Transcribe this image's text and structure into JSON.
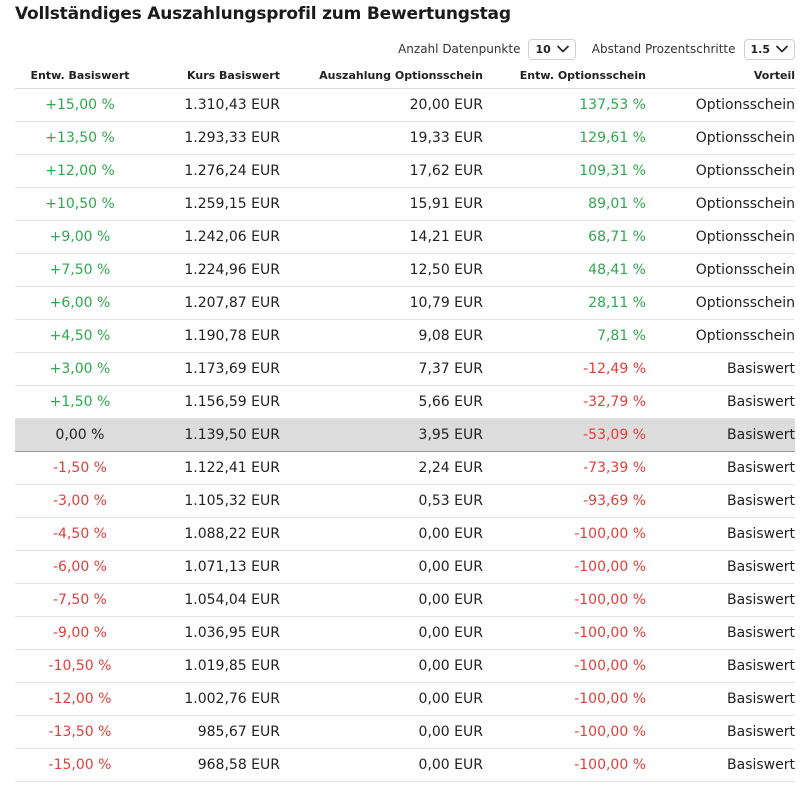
{
  "title": "Vollständiges Auszahlungsprofil zum Bewertungstag",
  "controls": {
    "datapoints_label": "Anzahl Datenpunkte",
    "datapoints_value": "10",
    "step_label": "Abstand Prozentschritte",
    "step_value": "1.5"
  },
  "colors": {
    "positive": "#2fa84f",
    "negative": "#e0403a",
    "highlight_row": "#dcdcdc"
  },
  "table": {
    "headers": [
      "Entw. Basiswert",
      "Kurs Basiswert",
      "Auszahlung Optionsschein",
      "Entw. Optionsschein",
      "Vorteil"
    ],
    "rows": [
      {
        "entw": "+15,00 %",
        "kurs": "1.310,43 EUR",
        "auszahlung": "20,00 EUR",
        "entw_os": "137,53 %",
        "vorteil": "Optionsschein",
        "s1": "pos",
        "s2": "pos"
      },
      {
        "entw": "+13,50 %",
        "kurs": "1.293,33 EUR",
        "auszahlung": "19,33 EUR",
        "entw_os": "129,61 %",
        "vorteil": "Optionsschein",
        "s1": "pos",
        "s2": "pos"
      },
      {
        "entw": "+12,00 %",
        "kurs": "1.276,24 EUR",
        "auszahlung": "17,62 EUR",
        "entw_os": "109,31 %",
        "vorteil": "Optionsschein",
        "s1": "pos",
        "s2": "pos"
      },
      {
        "entw": "+10,50 %",
        "kurs": "1.259,15 EUR",
        "auszahlung": "15,91 EUR",
        "entw_os": "89,01 %",
        "vorteil": "Optionsschein",
        "s1": "pos",
        "s2": "pos"
      },
      {
        "entw": "+9,00 %",
        "kurs": "1.242,06 EUR",
        "auszahlung": "14,21 EUR",
        "entw_os": "68,71 %",
        "vorteil": "Optionsschein",
        "s1": "pos",
        "s2": "pos"
      },
      {
        "entw": "+7,50 %",
        "kurs": "1.224,96 EUR",
        "auszahlung": "12,50 EUR",
        "entw_os": "48,41 %",
        "vorteil": "Optionsschein",
        "s1": "pos",
        "s2": "pos"
      },
      {
        "entw": "+6,00 %",
        "kurs": "1.207,87 EUR",
        "auszahlung": "10,79 EUR",
        "entw_os": "28,11 %",
        "vorteil": "Optionsschein",
        "s1": "pos",
        "s2": "pos"
      },
      {
        "entw": "+4,50 %",
        "kurs": "1.190,78 EUR",
        "auszahlung": "9,08 EUR",
        "entw_os": "7,81 %",
        "vorteil": "Optionsschein",
        "s1": "pos",
        "s2": "pos"
      },
      {
        "entw": "+3,00 %",
        "kurs": "1.173,69 EUR",
        "auszahlung": "7,37 EUR",
        "entw_os": "-12,49 %",
        "vorteil": "Basiswert",
        "s1": "pos",
        "s2": "neg"
      },
      {
        "entw": "+1,50 %",
        "kurs": "1.156,59 EUR",
        "auszahlung": "5,66 EUR",
        "entw_os": "-32,79 %",
        "vorteil": "Basiswert",
        "s1": "pos",
        "s2": "neg"
      },
      {
        "entw": "0,00 %",
        "kurs": "1.139,50 EUR",
        "auszahlung": "3,95 EUR",
        "entw_os": "-53,09 %",
        "vorteil": "Basiswert",
        "s1": "neu",
        "s2": "neg",
        "current": true
      },
      {
        "entw": "-1,50 %",
        "kurs": "1.122,41 EUR",
        "auszahlung": "2,24 EUR",
        "entw_os": "-73,39 %",
        "vorteil": "Basiswert",
        "s1": "neg",
        "s2": "neg"
      },
      {
        "entw": "-3,00 %",
        "kurs": "1.105,32 EUR",
        "auszahlung": "0,53 EUR",
        "entw_os": "-93,69 %",
        "vorteil": "Basiswert",
        "s1": "neg",
        "s2": "neg"
      },
      {
        "entw": "-4,50 %",
        "kurs": "1.088,22 EUR",
        "auszahlung": "0,00 EUR",
        "entw_os": "-100,00 %",
        "vorteil": "Basiswert",
        "s1": "neg",
        "s2": "neg"
      },
      {
        "entw": "-6,00 %",
        "kurs": "1.071,13 EUR",
        "auszahlung": "0,00 EUR",
        "entw_os": "-100,00 %",
        "vorteil": "Basiswert",
        "s1": "neg",
        "s2": "neg"
      },
      {
        "entw": "-7,50 %",
        "kurs": "1.054,04 EUR",
        "auszahlung": "0,00 EUR",
        "entw_os": "-100,00 %",
        "vorteil": "Basiswert",
        "s1": "neg",
        "s2": "neg"
      },
      {
        "entw": "-9,00 %",
        "kurs": "1.036,95 EUR",
        "auszahlung": "0,00 EUR",
        "entw_os": "-100,00 %",
        "vorteil": "Basiswert",
        "s1": "neg",
        "s2": "neg"
      },
      {
        "entw": "-10,50 %",
        "kurs": "1.019,85 EUR",
        "auszahlung": "0,00 EUR",
        "entw_os": "-100,00 %",
        "vorteil": "Basiswert",
        "s1": "neg",
        "s2": "neg"
      },
      {
        "entw": "-12,00 %",
        "kurs": "1.002,76 EUR",
        "auszahlung": "0,00 EUR",
        "entw_os": "-100,00 %",
        "vorteil": "Basiswert",
        "s1": "neg",
        "s2": "neg"
      },
      {
        "entw": "-13,50 %",
        "kurs": "985,67 EUR",
        "auszahlung": "0,00 EUR",
        "entw_os": "-100,00 %",
        "vorteil": "Basiswert",
        "s1": "neg",
        "s2": "neg"
      },
      {
        "entw": "-15,00 %",
        "kurs": "968,58 EUR",
        "auszahlung": "0,00 EUR",
        "entw_os": "-100,00 %",
        "vorteil": "Basiswert",
        "s1": "neg",
        "s2": "neg"
      }
    ]
  }
}
